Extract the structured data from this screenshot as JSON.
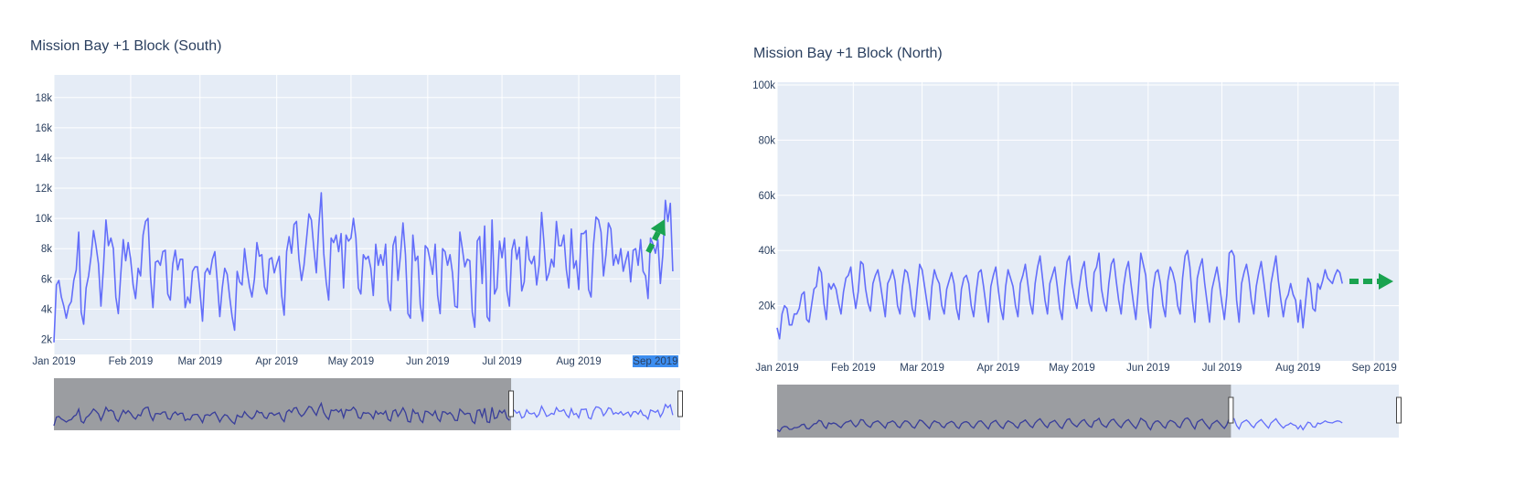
{
  "charts": [
    {
      "title": "Mission Bay +1 Block (South)",
      "indicator": {
        "direction": "up-right",
        "color": "#1aa350"
      },
      "highlighted_tick": "Sep 2019",
      "highlight_color": "#3d8ef0"
    },
    {
      "title": "Mission Bay +1 Block (North)",
      "indicator": {
        "direction": "right",
        "color": "#1aa350"
      },
      "highlighted_tick": "",
      "highlight_color": "#3d8ef0"
    }
  ],
  "colors": {
    "plot_bg": "#e5ecf6",
    "line": "#636efa",
    "rangeslider_mask": "#8a8b8e",
    "rangeslider_line_masked": "#3a3f9a"
  },
  "chart_data": [
    {
      "type": "line",
      "title": "Mission Bay +1 Block (South)",
      "x_range": [
        "2019-01-01",
        "2019-09-11"
      ],
      "x_ticks": [
        "Jan 2019",
        "Feb 2019",
        "Mar 2019",
        "Apr 2019",
        "May 2019",
        "Jun 2019",
        "Jul 2019",
        "Aug 2019",
        "Sep 2019"
      ],
      "ylim": [
        1000,
        19500
      ],
      "y_ticks": [
        "2k",
        "4k",
        "6k",
        "8k",
        "10k",
        "12k",
        "14k",
        "16k",
        "18k"
      ],
      "y_tick_values": [
        2000,
        4000,
        6000,
        8000,
        10000,
        12000,
        14000,
        16000,
        18000
      ],
      "grid": true,
      "rangeslider": {
        "visible": true,
        "selected_fraction": 0.73
      },
      "series": [
        {
          "x_start": "2019-01-01",
          "x_step_days": 1,
          "values": [
            1800,
            5600,
            5900,
            4800,
            4200,
            3400,
            4200,
            4500,
            5900,
            6600,
            9100,
            3800,
            3000,
            5400,
            6200,
            7500,
            9200,
            8200,
            7000,
            4200,
            6800,
            9900,
            8200,
            8700,
            8000,
            4800,
            3700,
            6300,
            8600,
            7200,
            8400,
            7300,
            5600,
            4700,
            6700,
            6200,
            8900,
            9800,
            10000,
            6200,
            4100,
            7100,
            7200,
            6900,
            7800,
            7900,
            5000,
            4600,
            7000,
            7900,
            6600,
            7300,
            7300,
            4100,
            4800,
            4400,
            6500,
            6800,
            6800,
            5200,
            3200,
            6400,
            6700,
            6300,
            7300,
            7800,
            5800,
            3500,
            5400,
            6700,
            6300,
            4800,
            3500,
            2600,
            6500,
            5800,
            5600,
            8000,
            6600,
            5500,
            4800,
            6000,
            8400,
            7500,
            7600,
            5500,
            5000,
            7300,
            7400,
            6400,
            7000,
            7500,
            4900,
            3600,
            7800,
            8800,
            7700,
            9600,
            9800,
            7300,
            5900,
            6900,
            8600,
            10300,
            9900,
            8000,
            6400,
            9500,
            11700,
            7700,
            5800,
            4600,
            8700,
            8400,
            8900,
            7800,
            9000,
            5400,
            8900,
            8500,
            8700,
            10000,
            8700,
            5400,
            5000,
            7600,
            7300,
            7500,
            6700,
            4900,
            8300,
            6900,
            7600,
            6900,
            8300,
            4600,
            3900,
            8200,
            8800,
            5900,
            7600,
            9700,
            7600,
            3700,
            3400,
            8900,
            7200,
            7500,
            4300,
            3200,
            8200,
            8000,
            7200,
            6300,
            8300,
            4900,
            3700,
            8000,
            7800,
            6900,
            7600,
            6400,
            4200,
            4100,
            9100,
            8000,
            6800,
            7300,
            7200,
            3800,
            2800,
            8500,
            8800,
            5700,
            9500,
            3500,
            3200,
            9900,
            5000,
            5400,
            8500,
            7400,
            8700,
            5200,
            4200,
            7900,
            8600,
            7300,
            8100,
            5200,
            5800,
            8800,
            7300,
            7000,
            7500,
            5600,
            6900,
            10400,
            8300,
            5900,
            6400,
            7300,
            6800,
            9800,
            8200,
            8200,
            8900,
            6600,
            5400,
            9300,
            6700,
            7200,
            5300,
            9000,
            9000,
            9200,
            5300,
            4800,
            8300,
            10100,
            9900,
            9100,
            6200,
            7600,
            9700,
            9300,
            6900,
            7600,
            7000,
            8000,
            6500,
            7200,
            7800,
            5800,
            7900,
            8000,
            6900,
            8600,
            6500,
            6200,
            4700,
            8700,
            8300,
            7700,
            8600,
            5700,
            7600,
            11200,
            9800,
            11000,
            6500
          ]
        }
      ]
    },
    {
      "type": "line",
      "title": "Mission Bay +1 Block (North)",
      "x_range": [
        "2019-01-01",
        "2019-09-11"
      ],
      "x_ticks": [
        "Jan 2019",
        "Feb 2019",
        "Mar 2019",
        "Apr 2019",
        "May 2019",
        "Jun 2019",
        "Jul 2019",
        "Aug 2019",
        "Sep 2019"
      ],
      "ylim": [
        0,
        101000
      ],
      "y_ticks": [
        "20k",
        "40k",
        "60k",
        "80k",
        "100k"
      ],
      "y_tick_values": [
        20000,
        40000,
        60000,
        80000,
        100000
      ],
      "grid": true,
      "rangeslider": {
        "visible": true,
        "selected_fraction": 0.73
      },
      "series": [
        {
          "x_start": "2019-01-01",
          "x_step_days": 1,
          "values": [
            12000,
            8000,
            17000,
            20000,
            19000,
            13000,
            13000,
            17000,
            17000,
            19000,
            24000,
            25000,
            15000,
            14000,
            20000,
            26000,
            27000,
            34000,
            32000,
            21000,
            15000,
            28000,
            26000,
            28000,
            26000,
            21000,
            17000,
            25000,
            30000,
            31000,
            34000,
            25000,
            19000,
            25000,
            36000,
            35000,
            26000,
            21000,
            18000,
            28000,
            31000,
            33000,
            28000,
            22000,
            16000,
            28000,
            30000,
            33000,
            29000,
            20000,
            17000,
            27000,
            33000,
            32000,
            27000,
            19000,
            16000,
            26000,
            35000,
            33000,
            27000,
            21000,
            15000,
            27000,
            33000,
            30000,
            28000,
            20000,
            17000,
            26000,
            29000,
            32000,
            28000,
            19000,
            15000,
            26000,
            30000,
            31000,
            28000,
            20000,
            16000,
            25000,
            32000,
            33000,
            27000,
            20000,
            14000,
            27000,
            31000,
            34000,
            26000,
            19000,
            15000,
            27000,
            33000,
            30000,
            27000,
            20000,
            16000,
            28000,
            31000,
            35000,
            28000,
            21000,
            17000,
            28000,
            34000,
            38000,
            30000,
            22000,
            17000,
            28000,
            31000,
            34000,
            27000,
            19000,
            15000,
            27000,
            36000,
            38000,
            28000,
            23000,
            19000,
            27000,
            33000,
            36000,
            27000,
            21000,
            18000,
            32000,
            34000,
            39000,
            26000,
            21000,
            18000,
            28000,
            35000,
            37000,
            29000,
            22000,
            17000,
            27000,
            33000,
            36000,
            28000,
            21000,
            15000,
            26000,
            39000,
            35000,
            31000,
            19000,
            12000,
            26000,
            32000,
            33000,
            28000,
            20000,
            16000,
            29000,
            34000,
            32000,
            28000,
            20000,
            17000,
            30000,
            38000,
            40000,
            34000,
            22000,
            14000,
            30000,
            34000,
            37000,
            28000,
            21000,
            14000,
            26000,
            30000,
            34000,
            28000,
            21000,
            15000,
            24000,
            39000,
            40000,
            38000,
            22000,
            14000,
            28000,
            32000,
            35000,
            30000,
            22000,
            17000,
            27000,
            32000,
            36000,
            29000,
            22000,
            16000,
            28000,
            33000,
            38000,
            29000,
            22000,
            16000,
            22000,
            24000,
            28000,
            24000,
            22000,
            14000,
            22000,
            12000,
            21000,
            30000,
            28000,
            19000,
            18000,
            28000,
            26000,
            29000,
            33000,
            30000,
            29000,
            28000,
            31000,
            33000,
            32000,
            28000
          ]
        }
      ]
    }
  ]
}
